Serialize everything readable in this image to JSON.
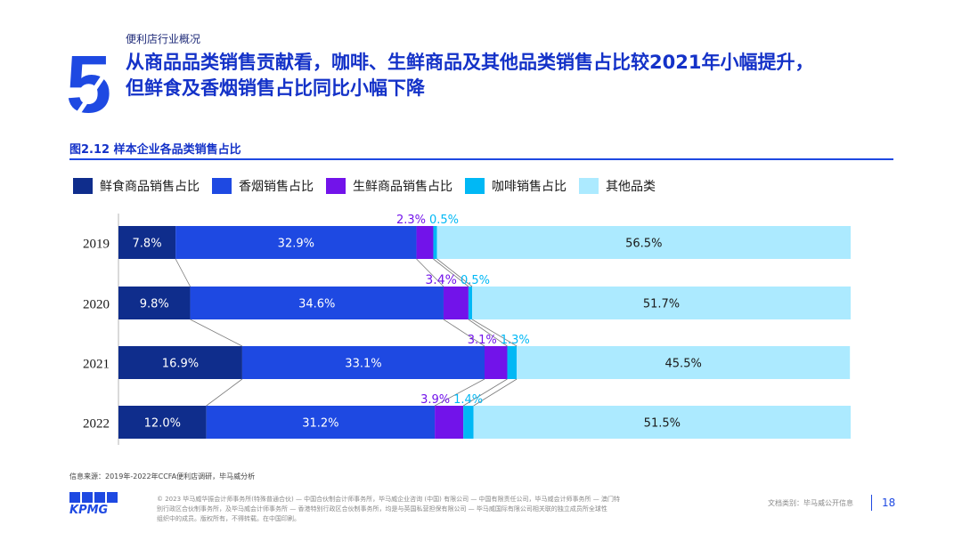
{
  "section_label": "便利店行业概况",
  "section_number": "5",
  "headline_line1": "从商品品类销售贡献看，咖啡、生鲜商品及其他品类销售占比较2021年小幅提升，",
  "headline_line2": "但鲜食及香烟销售占比同比小幅下降",
  "figure_title": "图2.12 样本企业各品类销售占比",
  "source_note": "信息来源：2019年-2022年CCFA便利店调研，毕马威分析",
  "footer": {
    "logo_text": "KPMG",
    "legal_line1": "© 2023 毕马威华振会计师事务所(特殊普通合伙) — 中国合伙制会计师事务所，毕马威企业咨询 (中国) 有限公司 — 中国有限责任公司，毕马威会计师事务所 — 澳门特",
    "legal_line2": "别行政区合伙制事务所，及毕马威会计师事务所 — 香港特别行政区合伙制事务所，均是与英国私营担保有限公司 — 毕马威国际有限公司相关联的独立成员所全球性",
    "legal_line3": "组织中的成员。版权所有，不得转载。在中国印刷。",
    "doc_class": "文档类别：毕马威公开信息",
    "page_number": "18"
  },
  "colors": {
    "fresh_food": "#0f2d8c",
    "cigarettes": "#1e49e2",
    "fresh_produce": "#7213ea",
    "coffee": "#00b8f5",
    "other": "#aceaff"
  },
  "chart_data": {
    "type": "bar",
    "orientation": "horizontal",
    "stacked": true,
    "percent": true,
    "categories": [
      "2019",
      "2020",
      "2021",
      "2022"
    ],
    "series": [
      {
        "name": "鲜食商品销售占比",
        "values": [
          7.8,
          9.8,
          16.9,
          12.0
        ],
        "labels": [
          "7.8%",
          "9.8%",
          "16.9%",
          "12.0%"
        ]
      },
      {
        "name": "香烟销售占比",
        "values": [
          32.9,
          34.6,
          33.1,
          31.2
        ],
        "labels": [
          "32.9%",
          "34.6%",
          "33.1%",
          "31.2%"
        ]
      },
      {
        "name": "生鲜商品销售占比",
        "values": [
          2.3,
          3.4,
          3.1,
          3.9
        ],
        "labels": [
          "2.3%",
          "3.4%",
          "3.1%",
          "3.9%"
        ]
      },
      {
        "name": "咖啡销售占比",
        "values": [
          0.5,
          0.5,
          1.3,
          1.4
        ],
        "labels": [
          "0.5%",
          "0.5%",
          "1.3%",
          "1.4%"
        ]
      },
      {
        "name": "其他品类",
        "values": [
          56.5,
          51.7,
          45.5,
          51.5
        ],
        "labels": [
          "56.5%",
          "51.7%",
          "45.5%",
          "51.5%"
        ]
      }
    ],
    "xlim": [
      0,
      100
    ],
    "legend_position": "top",
    "grid": false,
    "connector_lines": true
  }
}
